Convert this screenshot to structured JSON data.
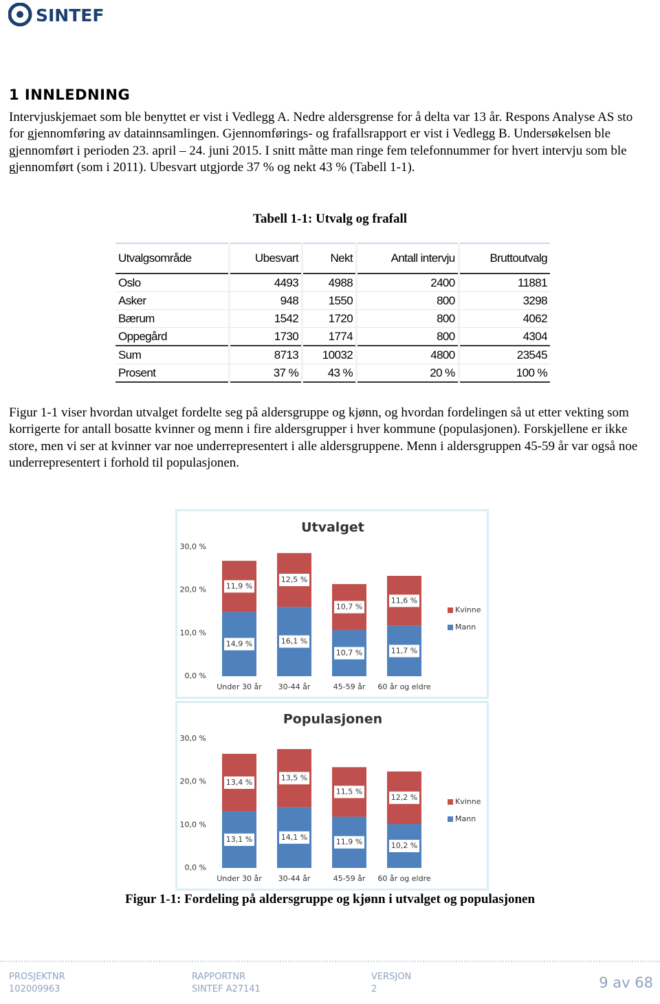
{
  "header": {
    "logo": "SINTEF"
  },
  "heading": "1 INNLEDNING",
  "paragraphs": [
    "Intervjuskjemaet som ble benyttet er vist i Vedlegg A. Nedre aldersgrense for å delta var 13 år. Respons Analyse AS sto for gjennomføring av datainnsamlingen. Gjennomførings- og frafallsrapport er vist i Vedlegg B. Undersøkelsen ble gjennomført i perioden 23. april – 24. juni 2015. I snitt måtte man ringe fem telefonnummer for hvert intervju som ble gjennomført (som i 2011). Ubesvart utgjorde 37 % og nekt 43 % (Tabell 1-1).",
    "Figur 1-1 viser hvordan utvalget fordelte seg på aldersgruppe og kjønn, og hvordan fordelingen så ut etter vekting som korrigerte for antall bosatte kvinner og menn i fire aldersgrupper i hver kommune (populasjonen). Forskjellene er ikke store, men vi ser at kvinner var noe underrepresentert i alle aldersgruppene. Menn i aldersgruppen 45-59 år var også noe underrepresentert i forhold til populasjonen."
  ],
  "table": {
    "caption": "Tabell 1-1: Utvalg og frafall",
    "columns": [
      "Utvalgsområde",
      "Ubesvart",
      "Nekt",
      "Antall intervju",
      "Bruttoutvalg"
    ],
    "rows": [
      [
        "Oslo",
        "4493",
        "4988",
        "2400",
        "11881"
      ],
      [
        "Asker",
        "948",
        "1550",
        "800",
        "3298"
      ],
      [
        "Bærum",
        "1542",
        "1720",
        "800",
        "4062"
      ],
      [
        "Oppegård",
        "1730",
        "1774",
        "800",
        "4304"
      ],
      [
        "Sum",
        "8713",
        "10032",
        "4800",
        "23545"
      ],
      [
        "Prosent",
        "37 %",
        "43 %",
        "20 %",
        "100 %"
      ]
    ]
  },
  "chart_data": [
    {
      "type": "stacked-bar",
      "title": "Utvalget",
      "categories": [
        "Under 30 år",
        "30-44 år",
        "45-59 år",
        "60 år og eldre"
      ],
      "series": [
        {
          "name": "Mann",
          "color": "#4f81bd",
          "values": [
            14.9,
            16.1,
            10.7,
            11.7
          ],
          "value_labels": [
            "14,9 %",
            "16,1 %",
            "10,7 %",
            "11,7 %"
          ]
        },
        {
          "name": "Kvinne",
          "color": "#c0504d",
          "values": [
            11.9,
            12.5,
            10.7,
            11.6
          ],
          "value_labels": [
            "11,9 %",
            "12,5 %",
            "10,7 %",
            "11,6 %"
          ]
        }
      ],
      "ylim": [
        0,
        30
      ],
      "yticks": [
        {
          "value": 0,
          "label": "0,0 %"
        },
        {
          "value": 10,
          "label": "10,0 %"
        },
        {
          "value": 20,
          "label": "20,0 %"
        },
        {
          "value": 30,
          "label": "30,0 %"
        }
      ],
      "legend": "right"
    },
    {
      "type": "stacked-bar",
      "title": "Populasjonen",
      "categories": [
        "Under 30 år",
        "30-44 år",
        "45-59 år",
        "60 år og eldre"
      ],
      "series": [
        {
          "name": "Mann",
          "color": "#4f81bd",
          "values": [
            13.1,
            14.1,
            11.9,
            10.2
          ],
          "value_labels": [
            "13,1 %",
            "14,1 %",
            "11,9 %",
            "10,2 %"
          ]
        },
        {
          "name": "Kvinne",
          "color": "#c0504d",
          "values": [
            13.4,
            13.5,
            11.5,
            12.2
          ],
          "value_labels": [
            "13,4 %",
            "13,5 %",
            "11,5 %",
            "12,2 %"
          ]
        }
      ],
      "ylim": [
        0,
        30
      ],
      "yticks": [
        {
          "value": 0,
          "label": "0,0 %"
        },
        {
          "value": 10,
          "label": "10,0 %"
        },
        {
          "value": 20,
          "label": "20,0 %"
        },
        {
          "value": 30,
          "label": "30,0 %"
        }
      ],
      "legend": "right"
    }
  ],
  "figure_caption": "Figur 1-1: Fordeling på aldersgruppe og kjønn i utvalget og populasjonen",
  "footer": {
    "project_label": "PROSJEKTNR",
    "project": "102009963",
    "report_label": "RAPPORTNR",
    "report": "SINTEF A27141",
    "version_label": "VERSJON",
    "version": "2",
    "page": "9 av 68"
  }
}
